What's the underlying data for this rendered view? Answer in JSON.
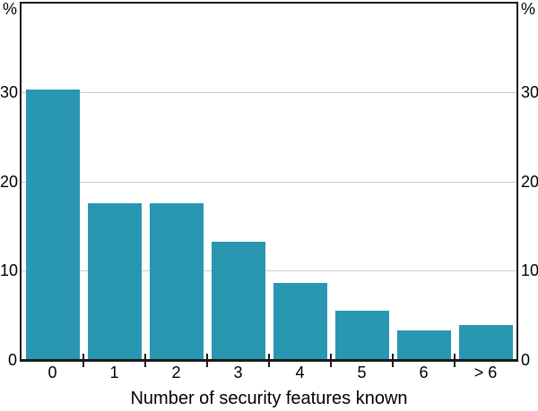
{
  "chart_data": {
    "type": "bar",
    "categories": [
      "0",
      "1",
      "2",
      "3",
      "4",
      "5",
      "6",
      "> 6"
    ],
    "values": [
      30.3,
      17.5,
      17.5,
      13.2,
      8.6,
      5.5,
      3.3,
      3.9
    ],
    "title": "",
    "xlabel": "Number of security features known",
    "ylabel_left": "%",
    "ylabel_right": "%",
    "yticks": [
      0,
      10,
      20,
      30
    ],
    "ylim": [
      0,
      40
    ],
    "grid": true,
    "legend": "none",
    "colors": {
      "bar": "#2996B2",
      "gridline": "#cccccc",
      "axis": "#1a1a1a",
      "text": "#000000",
      "background": "#ffffff"
    }
  }
}
